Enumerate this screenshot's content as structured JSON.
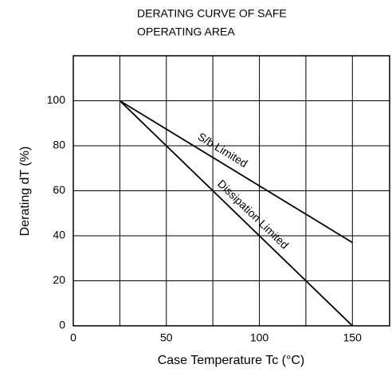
{
  "chart_data": {
    "type": "line",
    "title": [
      "DERATING CURVE OF SAFE",
      "OPERATING AREA"
    ],
    "xlabel": "Case Temperature  Tc  (°C)",
    "ylabel": "Derating  dT  (%)",
    "series": [
      {
        "name": "S/b Limited",
        "color": "#000000",
        "x": [
          25,
          150
        ],
        "values": [
          100,
          37
        ]
      },
      {
        "name": "Dissipation Limited",
        "color": "#000000",
        "x": [
          25,
          150
        ],
        "values": [
          100,
          0
        ]
      }
    ],
    "xlim": [
      0,
      170
    ],
    "ylim": [
      0,
      120
    ],
    "xticks": [
      0,
      50,
      100,
      150
    ],
    "xminor_ticks": [
      25,
      75,
      125
    ],
    "yticks": [
      0,
      20,
      40,
      60,
      80,
      100
    ],
    "grid": true
  }
}
